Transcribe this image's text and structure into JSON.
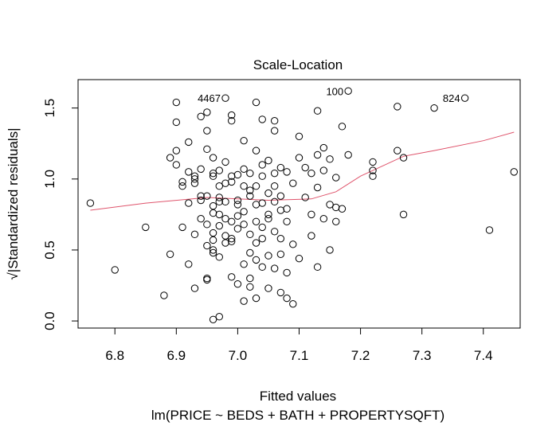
{
  "chart_data": {
    "type": "scatter",
    "title": "Scale-Location",
    "xlabel": "Fitted values",
    "ylabel": "√|Standardized residuals|",
    "subtitle": "lm(PRICE ~ BEDS + BATH + PROPERTYSQFT)",
    "xlim": [
      6.74,
      7.46
    ],
    "ylim": [
      -0.05,
      1.7
    ],
    "xticks": [
      "6.8",
      "6.9",
      "7.0",
      "7.1",
      "7.2",
      "7.3",
      "7.4"
    ],
    "yticks": [
      "0.0",
      "0.5",
      "1.0",
      "1.5"
    ],
    "grid": false,
    "point_style": "open-circle",
    "colors": {
      "points": "#000000",
      "smooth": "#DF536B"
    },
    "labeled_points": [
      {
        "label": "4467",
        "x": 6.98,
        "y": 1.57
      },
      {
        "label": "100",
        "x": 7.18,
        "y": 1.62
      },
      {
        "label": "824",
        "x": 7.37,
        "y": 1.57
      }
    ],
    "points": [
      [
        6.76,
        0.83
      ],
      [
        6.8,
        0.36
      ],
      [
        6.85,
        0.66
      ],
      [
        6.88,
        0.18
      ],
      [
        6.89,
        0.47
      ],
      [
        6.89,
        1.15
      ],
      [
        6.9,
        1.54
      ],
      [
        6.9,
        1.4
      ],
      [
        6.9,
        1.2
      ],
      [
        6.9,
        1.1
      ],
      [
        6.91,
        0.98
      ],
      [
        6.91,
        0.95
      ],
      [
        6.91,
        0.66
      ],
      [
        6.92,
        0.4
      ],
      [
        6.92,
        1.26
      ],
      [
        6.92,
        1.05
      ],
      [
        6.92,
        0.83
      ],
      [
        6.93,
        0.97
      ],
      [
        6.93,
        1.0
      ],
      [
        6.93,
        0.23
      ],
      [
        6.93,
        0.61
      ],
      [
        6.93,
        1.02
      ],
      [
        6.94,
        1.07
      ],
      [
        6.94,
        0.85
      ],
      [
        6.94,
        0.88
      ],
      [
        6.94,
        0.72
      ],
      [
        6.94,
        1.44
      ],
      [
        6.95,
        0.68
      ],
      [
        6.95,
        1.34
      ],
      [
        6.95,
        1.47
      ],
      [
        6.95,
        0.29
      ],
      [
        6.95,
        0.3
      ],
      [
        6.95,
        0.53
      ],
      [
        6.95,
        0.88
      ],
      [
        6.95,
        1.21
      ],
      [
        6.96,
        1.04
      ],
      [
        6.96,
        0.01
      ],
      [
        6.96,
        0.76
      ],
      [
        6.96,
        1.02
      ],
      [
        6.96,
        0.81
      ],
      [
        6.96,
        0.5
      ],
      [
        6.96,
        0.57
      ],
      [
        6.96,
        0.48
      ],
      [
        6.96,
        1.15
      ],
      [
        6.96,
        0.62
      ],
      [
        6.97,
        0.84
      ],
      [
        6.97,
        0.03
      ],
      [
        6.97,
        0.75
      ],
      [
        6.97,
        0.67
      ],
      [
        6.97,
        0.87
      ],
      [
        6.97,
        0.45
      ],
      [
        6.97,
        1.06
      ],
      [
        6.97,
        0.95
      ],
      [
        6.98,
        0.55
      ],
      [
        6.98,
        0.6
      ],
      [
        6.98,
        0.72
      ],
      [
        6.98,
        1.12
      ],
      [
        6.98,
        0.97
      ],
      [
        6.98,
        0.84
      ],
      [
        6.99,
        0.31
      ],
      [
        6.99,
        1.45
      ],
      [
        6.99,
        1.41
      ],
      [
        6.99,
        0.58
      ],
      [
        6.99,
        0.98
      ],
      [
        6.99,
        1.02
      ],
      [
        6.99,
        0.7
      ],
      [
        6.99,
        0.56
      ],
      [
        7.0,
        0.26
      ],
      [
        7.0,
        0.85
      ],
      [
        7.0,
        1.03
      ],
      [
        7.0,
        0.74
      ],
      [
        7.0,
        0.82
      ],
      [
        7.0,
        0.65
      ],
      [
        7.01,
        1.27
      ],
      [
        7.01,
        0.77
      ],
      [
        7.01,
        0.68
      ],
      [
        7.01,
        0.4
      ],
      [
        7.01,
        0.14
      ],
      [
        7.01,
        1.07
      ],
      [
        7.01,
        0.95
      ],
      [
        7.02,
        1.04
      ],
      [
        7.02,
        0.61
      ],
      [
        7.02,
        0.92
      ],
      [
        7.02,
        0.24
      ],
      [
        7.02,
        0.48
      ],
      [
        7.02,
        0.3
      ],
      [
        7.02,
        0.88
      ],
      [
        7.03,
        1.2
      ],
      [
        7.03,
        0.55
      ],
      [
        7.03,
        0.7
      ],
      [
        7.03,
        0.82
      ],
      [
        7.03,
        0.95
      ],
      [
        7.03,
        1.54
      ],
      [
        7.03,
        0.16
      ],
      [
        7.03,
        0.43
      ],
      [
        7.04,
        1.42
      ],
      [
        7.04,
        0.83
      ],
      [
        7.04,
        1.02
      ],
      [
        7.04,
        0.66
      ],
      [
        7.04,
        0.38
      ],
      [
        7.04,
        1.1
      ],
      [
        7.04,
        0.58
      ],
      [
        7.05,
        0.75
      ],
      [
        7.05,
        0.9
      ],
      [
        7.05,
        1.13
      ],
      [
        7.05,
        0.46
      ],
      [
        7.05,
        0.72
      ],
      [
        7.05,
        0.23
      ],
      [
        7.06,
        1.34
      ],
      [
        7.06,
        0.84
      ],
      [
        7.06,
        1.04
      ],
      [
        7.06,
        0.63
      ],
      [
        7.06,
        0.95
      ],
      [
        7.06,
        1.41
      ],
      [
        7.06,
        0.37
      ],
      [
        7.07,
        0.78
      ],
      [
        7.07,
        1.08
      ],
      [
        7.07,
        0.2
      ],
      [
        7.07,
        0.47
      ],
      [
        7.07,
        0.88
      ],
      [
        7.07,
        0.58
      ],
      [
        7.08,
        1.05
      ],
      [
        7.08,
        0.79
      ],
      [
        7.08,
        0.34
      ],
      [
        7.08,
        0.7
      ],
      [
        7.08,
        0.16
      ],
      [
        7.09,
        0.54
      ],
      [
        7.09,
        0.97
      ],
      [
        7.09,
        0.12
      ],
      [
        7.1,
        1.15
      ],
      [
        7.1,
        0.44
      ],
      [
        7.1,
        1.3
      ],
      [
        7.11,
        0.87
      ],
      [
        7.11,
        1.08
      ],
      [
        7.12,
        0.75
      ],
      [
        7.12,
        1.04
      ],
      [
        7.12,
        0.6
      ],
      [
        7.13,
        1.48
      ],
      [
        7.13,
        1.17
      ],
      [
        7.13,
        0.94
      ],
      [
        7.13,
        0.38
      ],
      [
        7.14,
        1.22
      ],
      [
        7.14,
        0.72
      ],
      [
        7.14,
        1.06
      ],
      [
        7.15,
        1.14
      ],
      [
        7.15,
        0.5
      ],
      [
        7.15,
        0.82
      ],
      [
        7.16,
        0.8
      ],
      [
        7.16,
        1.01
      ],
      [
        7.16,
        0.7
      ],
      [
        7.17,
        0.79
      ],
      [
        7.17,
        1.37
      ],
      [
        7.18,
        1.17
      ],
      [
        7.22,
        1.02
      ],
      [
        7.22,
        1.06
      ],
      [
        7.22,
        1.12
      ],
      [
        7.26,
        1.51
      ],
      [
        7.26,
        1.2
      ],
      [
        7.27,
        1.15
      ],
      [
        7.27,
        0.75
      ],
      [
        7.32,
        1.5
      ],
      [
        7.41,
        0.64
      ],
      [
        7.45,
        1.05
      ]
    ],
    "smooth_line": [
      [
        6.76,
        0.78
      ],
      [
        6.85,
        0.83
      ],
      [
        6.95,
        0.87
      ],
      [
        7.05,
        0.85
      ],
      [
        7.12,
        0.86
      ],
      [
        7.16,
        0.91
      ],
      [
        7.2,
        1.02
      ],
      [
        7.27,
        1.16
      ],
      [
        7.32,
        1.2
      ],
      [
        7.4,
        1.27
      ],
      [
        7.45,
        1.33
      ]
    ]
  }
}
